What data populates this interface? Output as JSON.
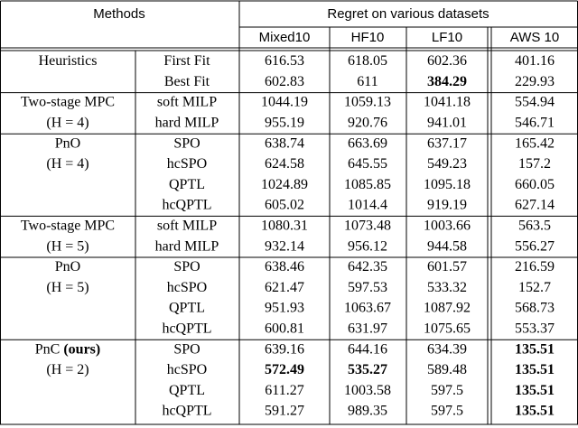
{
  "header": {
    "methods": "Methods",
    "regret": "Regret on various datasets",
    "datasets": [
      "Mixed10",
      "HF10",
      "LF10",
      "AWS 10"
    ]
  },
  "groups": [
    {
      "label": [
        "Heuristics"
      ],
      "rows": [
        {
          "method": "First Fit",
          "values": [
            "616.53",
            "618.05",
            "602.36",
            "401.16"
          ],
          "bold": []
        },
        {
          "method": "Best Fit",
          "values": [
            "602.83",
            "611",
            "384.29",
            "229.93"
          ],
          "bold": [
            2
          ]
        }
      ]
    },
    {
      "label": [
        "Two-stage MPC",
        "(H = 4)"
      ],
      "rows": [
        {
          "method": "soft MILP",
          "values": [
            "1044.19",
            "1059.13",
            "1041.18",
            "554.94"
          ],
          "bold": []
        },
        {
          "method": "hard MILP",
          "values": [
            "955.19",
            "920.76",
            "941.01",
            "546.71"
          ],
          "bold": []
        }
      ]
    },
    {
      "label": [
        "PnO",
        "(H = 4)"
      ],
      "rows": [
        {
          "method": "SPO",
          "values": [
            "638.74",
            "663.69",
            "637.17",
            "165.42"
          ],
          "bold": []
        },
        {
          "method": "hcSPO",
          "values": [
            "624.58",
            "645.55",
            "549.23",
            "157.2"
          ],
          "bold": []
        },
        {
          "method": "QPTL",
          "values": [
            "1024.89",
            "1085.85",
            "1095.18",
            "660.05"
          ],
          "bold": []
        },
        {
          "method": "hcQPTL",
          "values": [
            "605.02",
            "1014.4",
            "919.19",
            "627.14"
          ],
          "bold": []
        }
      ]
    },
    {
      "label": [
        "Two-stage MPC",
        "(H = 5)"
      ],
      "rows": [
        {
          "method": "soft MILP",
          "values": [
            "1080.31",
            "1073.48",
            "1003.66",
            "563.5"
          ],
          "bold": []
        },
        {
          "method": "hard MILP",
          "values": [
            "932.14",
            "956.12",
            "944.58",
            "556.27"
          ],
          "bold": []
        }
      ]
    },
    {
      "label": [
        "PnO",
        "(H = 5)"
      ],
      "rows": [
        {
          "method": "SPO",
          "values": [
            "638.46",
            "642.35",
            "601.57",
            "216.59"
          ],
          "bold": []
        },
        {
          "method": "hcSPO",
          "values": [
            "621.47",
            "597.53",
            "533.32",
            "152.7"
          ],
          "bold": []
        },
        {
          "method": "QPTL",
          "values": [
            "951.93",
            "1063.67",
            "1087.92",
            "568.73"
          ],
          "bold": []
        },
        {
          "method": "hcQPTL",
          "values": [
            "600.81",
            "631.97",
            "1075.65",
            "553.37"
          ],
          "bold": []
        }
      ]
    },
    {
      "label": [
        "PnC",
        "(H = 2)"
      ],
      "note": "(ours)",
      "rows": [
        {
          "method": "SPO",
          "values": [
            "639.16",
            "644.16",
            "634.39",
            "135.51"
          ],
          "bold": [
            3
          ]
        },
        {
          "method": "hcSPO",
          "values": [
            "572.49",
            "535.27",
            "589.48",
            "135.51"
          ],
          "bold": [
            0,
            1,
            3
          ]
        },
        {
          "method": "QPTL",
          "values": [
            "611.27",
            "1003.58",
            "597.5",
            "135.51"
          ],
          "bold": [
            3
          ]
        },
        {
          "method": "hcQPTL",
          "values": [
            "591.27",
            "989.35",
            "597.5",
            "135.51"
          ],
          "bold": [
            3
          ]
        }
      ]
    }
  ]
}
